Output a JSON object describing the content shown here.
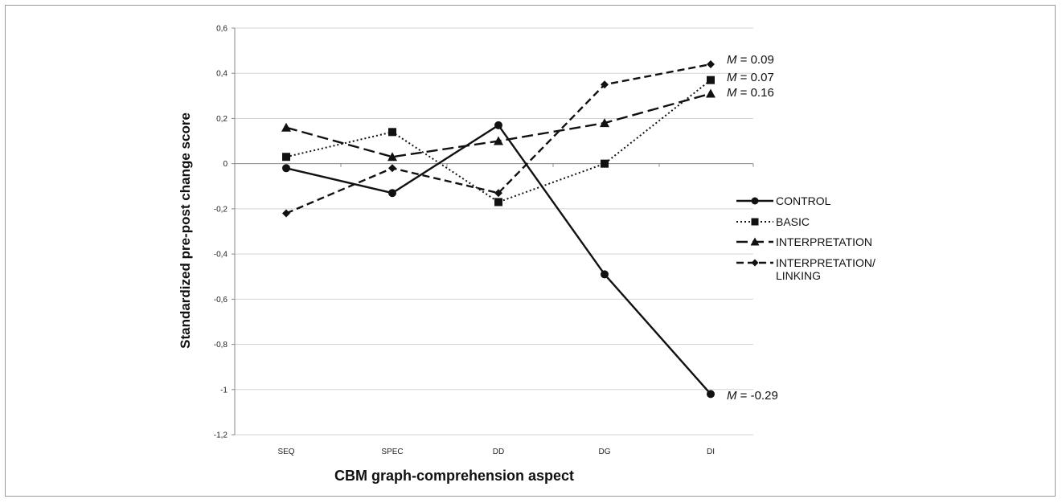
{
  "chart_data": {
    "type": "line",
    "title": "",
    "xlabel": "CBM graph-comprehension aspect",
    "ylabel": "Standardized pre-post change score",
    "categories": [
      "SEQ",
      "SPEC",
      "DD",
      "DG",
      "DI"
    ],
    "ylim": [
      -1.2,
      0.6
    ],
    "yticks": [
      0.6,
      0.4,
      0.2,
      0,
      -0.2,
      -0.4,
      -0.6,
      -0.8,
      -1,
      -1.2
    ],
    "ytick_labels": [
      "0,6",
      "0,4",
      "0,2",
      "0",
      "-0,2",
      "-0,4",
      "-0,6",
      "-0,8",
      "-1",
      "-1,2"
    ],
    "grid": true,
    "legend_position": "right",
    "series": [
      {
        "name": "CONTROL",
        "values": [
          -0.02,
          -0.13,
          0.17,
          -0.49,
          -1.02
        ],
        "marker": "circle",
        "dash": "solid",
        "annotation": "-0.29"
      },
      {
        "name": "BASIC",
        "values": [
          0.03,
          0.14,
          -0.17,
          0.0,
          0.37
        ],
        "marker": "square",
        "dash": "dotted",
        "annotation": "0.07"
      },
      {
        "name": "INTERPRETATION",
        "values": [
          0.16,
          0.03,
          0.1,
          0.18,
          0.31
        ],
        "marker": "triangle",
        "dash": "long-dash",
        "annotation": "0.16"
      },
      {
        "name": "INTERPRETATION/ LINKING",
        "name_lines": [
          "INTERPRETATION/",
          "LINKING"
        ],
        "values": [
          -0.22,
          -0.02,
          -0.13,
          0.35,
          0.44
        ],
        "marker": "diamond",
        "dash": "dashed",
        "annotation": "0.09"
      }
    ],
    "annotation_prefix": "M",
    "annotation_equals": "="
  }
}
